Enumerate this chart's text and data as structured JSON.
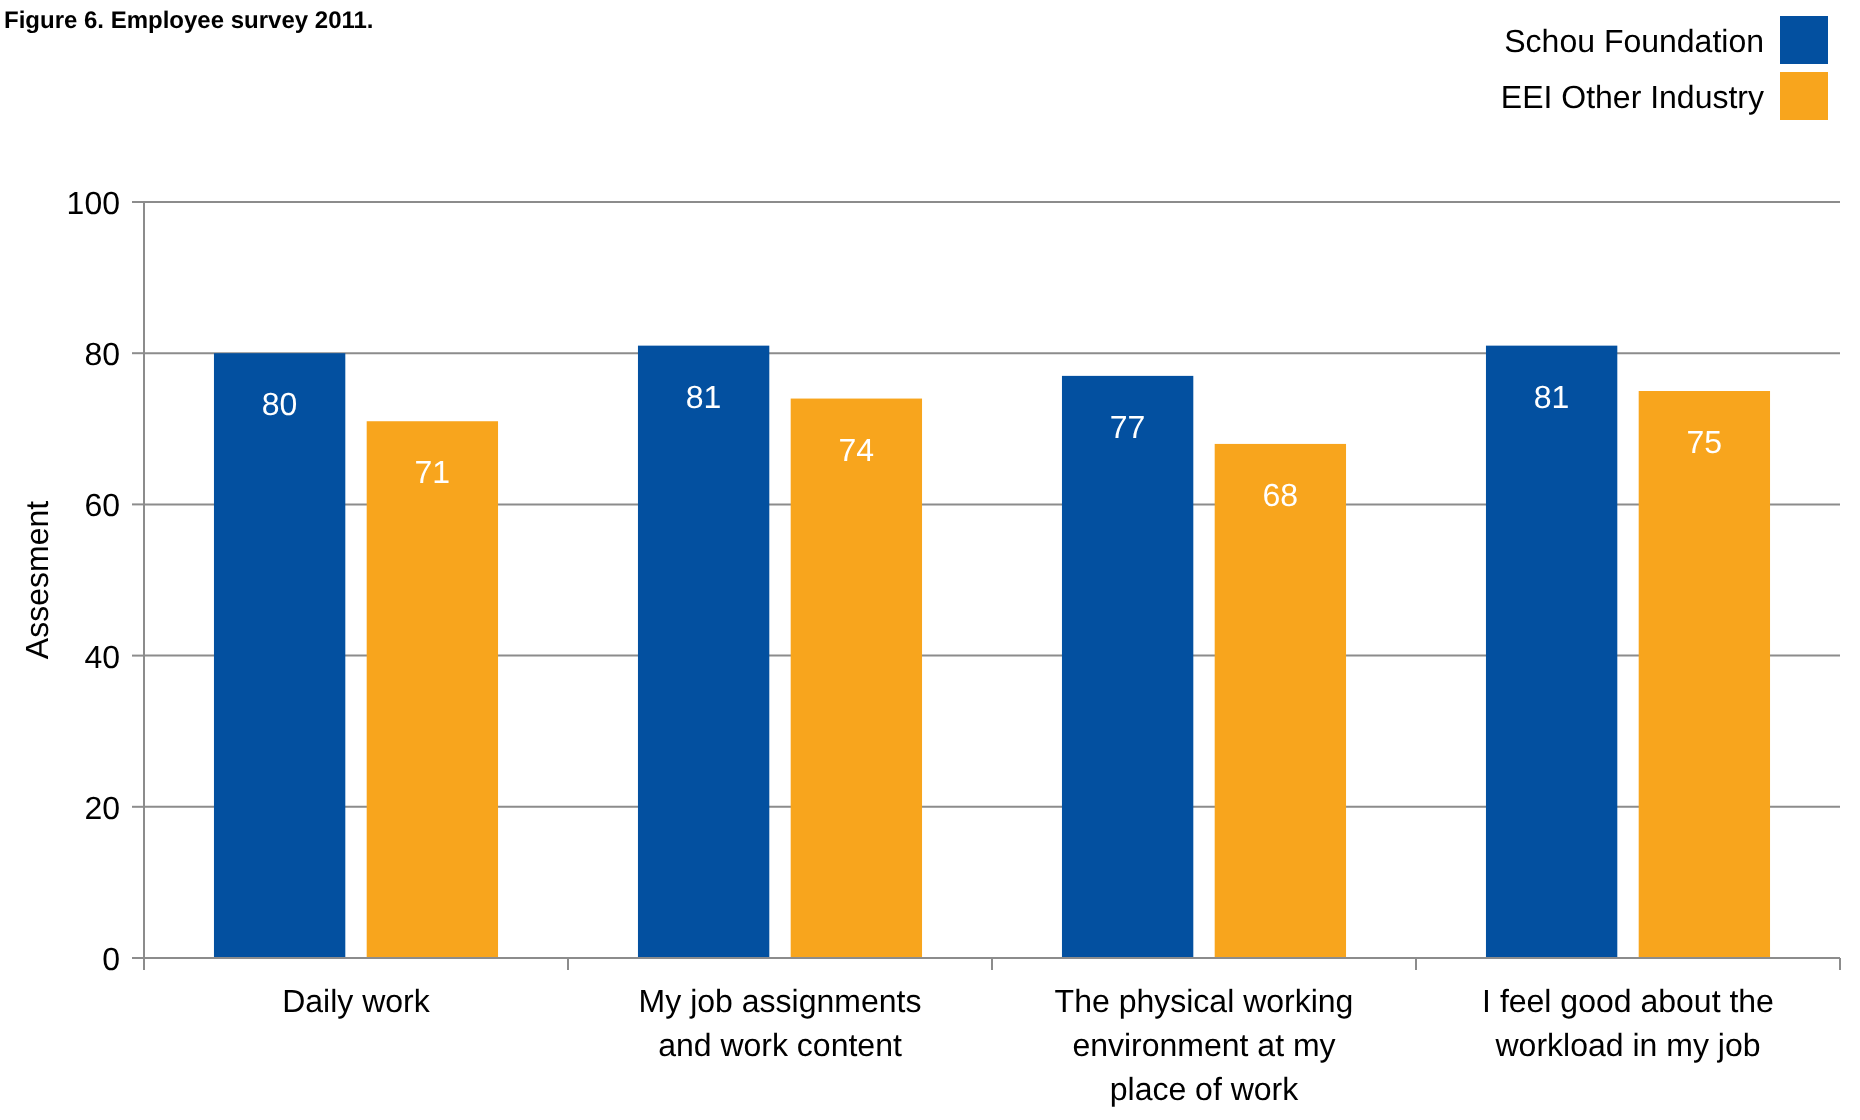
{
  "chart_data": {
    "type": "bar",
    "title": "Figure 6. Employee survey 2011.",
    "ylabel": "Assesment",
    "categories": [
      "Daily work",
      "My job assignments and work content",
      "The physical working environment at my place of work",
      "I feel good about the workload in my job"
    ],
    "series": [
      {
        "name": "Schou Foundation",
        "color": "#0350a0",
        "values": [
          80,
          81,
          77,
          81
        ]
      },
      {
        "name": "EEI Other Industry",
        "color": "#f8a51d",
        "values": [
          71,
          74,
          68,
          75
        ]
      }
    ],
    "ylim": [
      0,
      100
    ],
    "yticks": [
      0,
      20,
      40,
      60,
      80,
      100
    ],
    "grid": "y",
    "legend": "top right",
    "data_labels": true
  }
}
